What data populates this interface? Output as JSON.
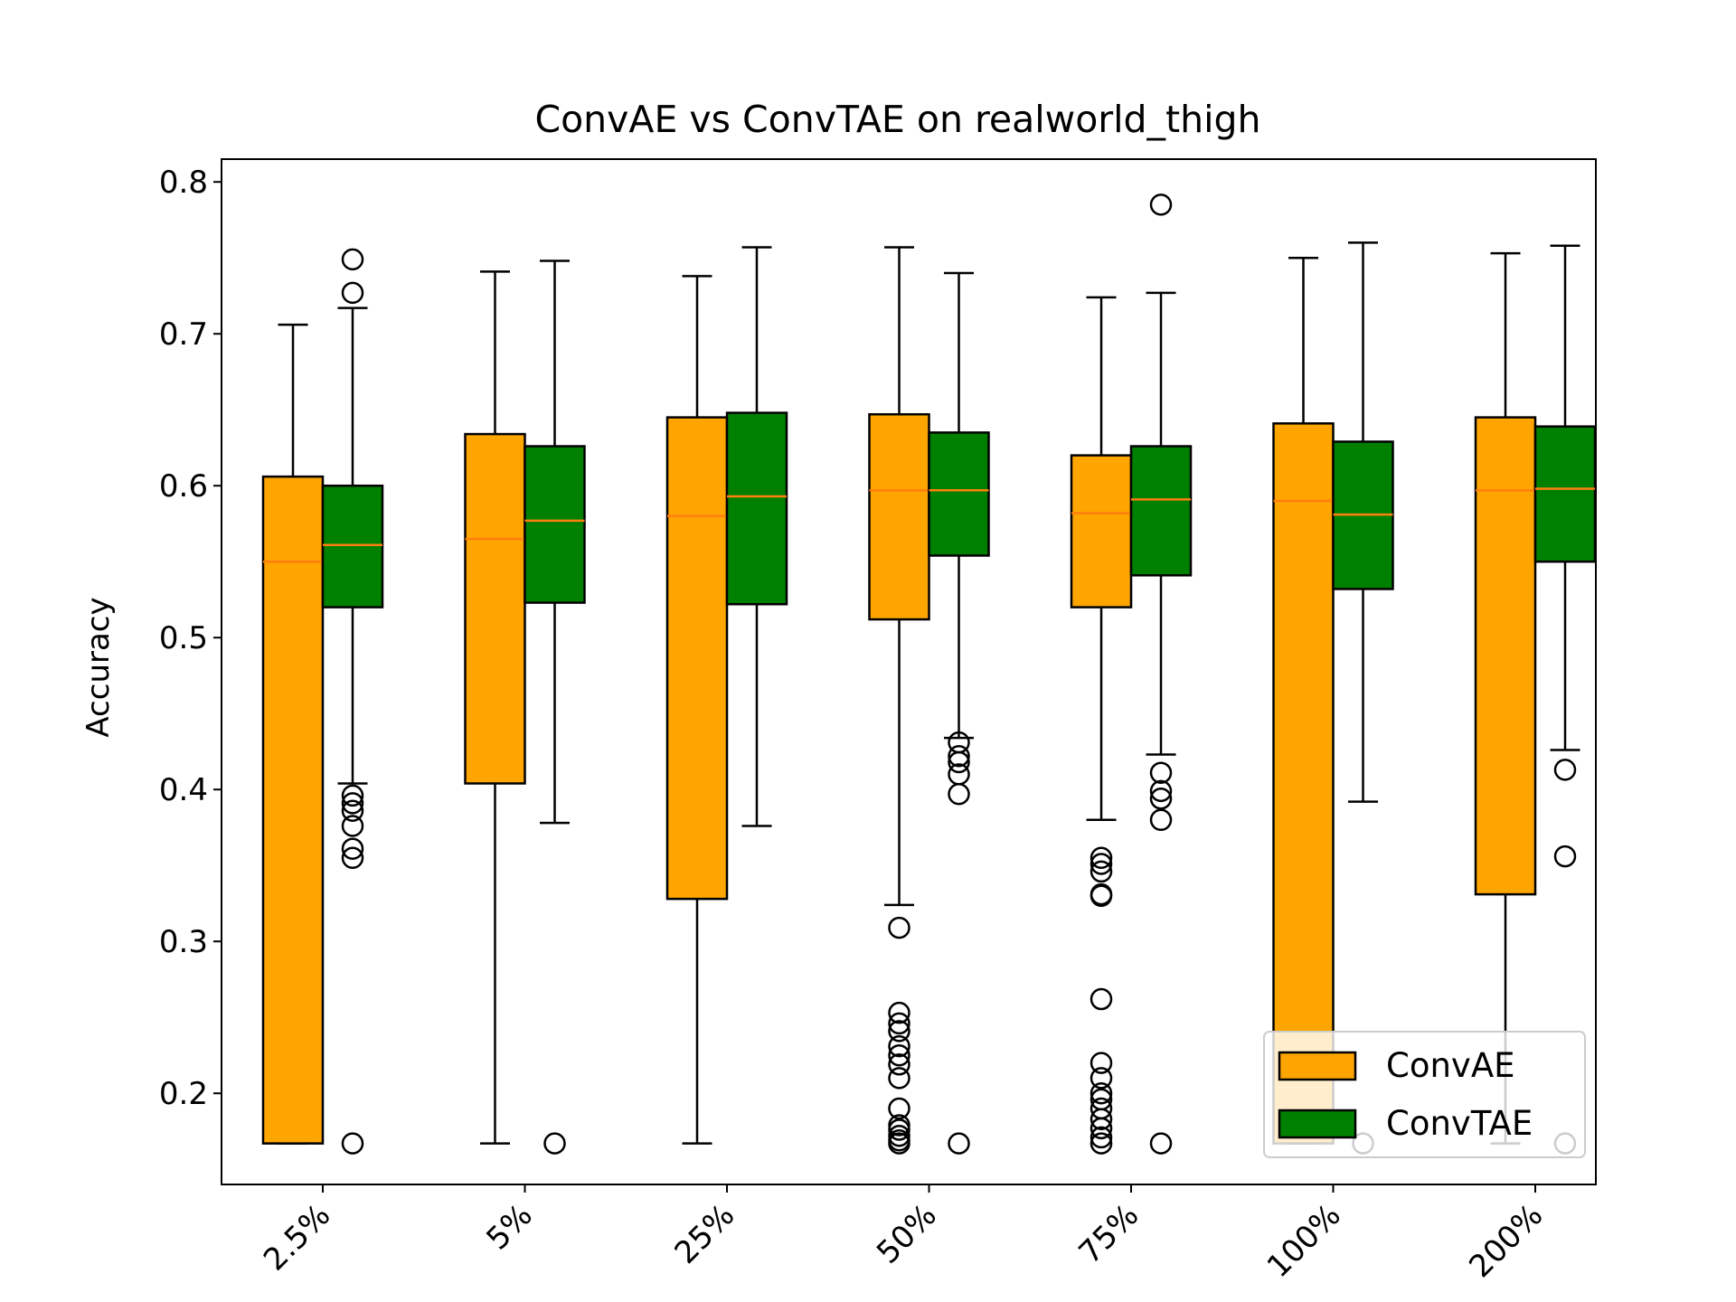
{
  "chart_data": {
    "type": "boxplot",
    "title": "ConvAE vs ConvTAE on realworld_thigh",
    "xlabel": "",
    "ylabel": "Accuracy",
    "ylim": [
      0.14,
      0.815
    ],
    "yticks": [
      "0.2",
      "0.3",
      "0.4",
      "0.5",
      "0.6",
      "0.7",
      "0.8"
    ],
    "categories": [
      "2.5%",
      "5%",
      "25%",
      "50%",
      "75%",
      "100%",
      "200%"
    ],
    "grid": false,
    "legend_position": "lower right",
    "series": [
      {
        "name": "ConvAE",
        "color": "#FFA500",
        "median_color": "#FF7F0E",
        "boxes": [
          {
            "q1": 0.167,
            "median": 0.55,
            "q3": 0.606,
            "whisker_low": 0.167,
            "whisker_high": 0.706,
            "outliers": []
          },
          {
            "q1": 0.404,
            "median": 0.565,
            "q3": 0.634,
            "whisker_low": 0.167,
            "whisker_high": 0.741,
            "outliers": []
          },
          {
            "q1": 0.328,
            "median": 0.58,
            "q3": 0.645,
            "whisker_low": 0.167,
            "whisker_high": 0.738,
            "outliers": []
          },
          {
            "q1": 0.512,
            "median": 0.597,
            "q3": 0.647,
            "whisker_low": 0.324,
            "whisker_high": 0.757,
            "outliers": [
              0.309,
              0.253,
              0.246,
              0.241,
              0.231,
              0.225,
              0.219,
              0.21,
              0.19,
              0.179,
              0.176,
              0.172,
              0.169,
              0.167
            ]
          },
          {
            "q1": 0.52,
            "median": 0.582,
            "q3": 0.62,
            "whisker_low": 0.38,
            "whisker_high": 0.724,
            "outliers": [
              0.355,
              0.351,
              0.346,
              0.331,
              0.33,
              0.262,
              0.22,
              0.21,
              0.2,
              0.196,
              0.19,
              0.183,
              0.177,
              0.171,
              0.167
            ]
          },
          {
            "q1": 0.167,
            "median": 0.59,
            "q3": 0.641,
            "whisker_low": 0.167,
            "whisker_high": 0.75,
            "outliers": []
          },
          {
            "q1": 0.331,
            "median": 0.597,
            "q3": 0.645,
            "whisker_low": 0.167,
            "whisker_high": 0.753,
            "outliers": []
          }
        ]
      },
      {
        "name": "ConvTAE",
        "color": "#008000",
        "median_color": "#FF7F0E",
        "boxes": [
          {
            "q1": 0.52,
            "median": 0.561,
            "q3": 0.6,
            "whisker_low": 0.404,
            "whisker_high": 0.717,
            "outliers": [
              0.749,
              0.727,
              0.396,
              0.391,
              0.386,
              0.376,
              0.361,
              0.355,
              0.167
            ]
          },
          {
            "q1": 0.523,
            "median": 0.577,
            "q3": 0.626,
            "whisker_low": 0.378,
            "whisker_high": 0.748,
            "outliers": [
              0.167
            ]
          },
          {
            "q1": 0.522,
            "median": 0.593,
            "q3": 0.648,
            "whisker_low": 0.376,
            "whisker_high": 0.757,
            "outliers": []
          },
          {
            "q1": 0.554,
            "median": 0.597,
            "q3": 0.635,
            "whisker_low": 0.434,
            "whisker_high": 0.74,
            "outliers": [
              0.431,
              0.422,
              0.418,
              0.41,
              0.397,
              0.167
            ]
          },
          {
            "q1": 0.541,
            "median": 0.591,
            "q3": 0.626,
            "whisker_low": 0.423,
            "whisker_high": 0.727,
            "outliers": [
              0.785,
              0.411,
              0.399,
              0.394,
              0.38,
              0.167
            ]
          },
          {
            "q1": 0.532,
            "median": 0.581,
            "q3": 0.629,
            "whisker_low": 0.392,
            "whisker_high": 0.76,
            "outliers": [
              0.167
            ]
          },
          {
            "q1": 0.55,
            "median": 0.598,
            "q3": 0.639,
            "whisker_low": 0.426,
            "whisker_high": 0.758,
            "outliers": [
              0.413,
              0.356,
              0.167
            ]
          }
        ]
      }
    ]
  }
}
